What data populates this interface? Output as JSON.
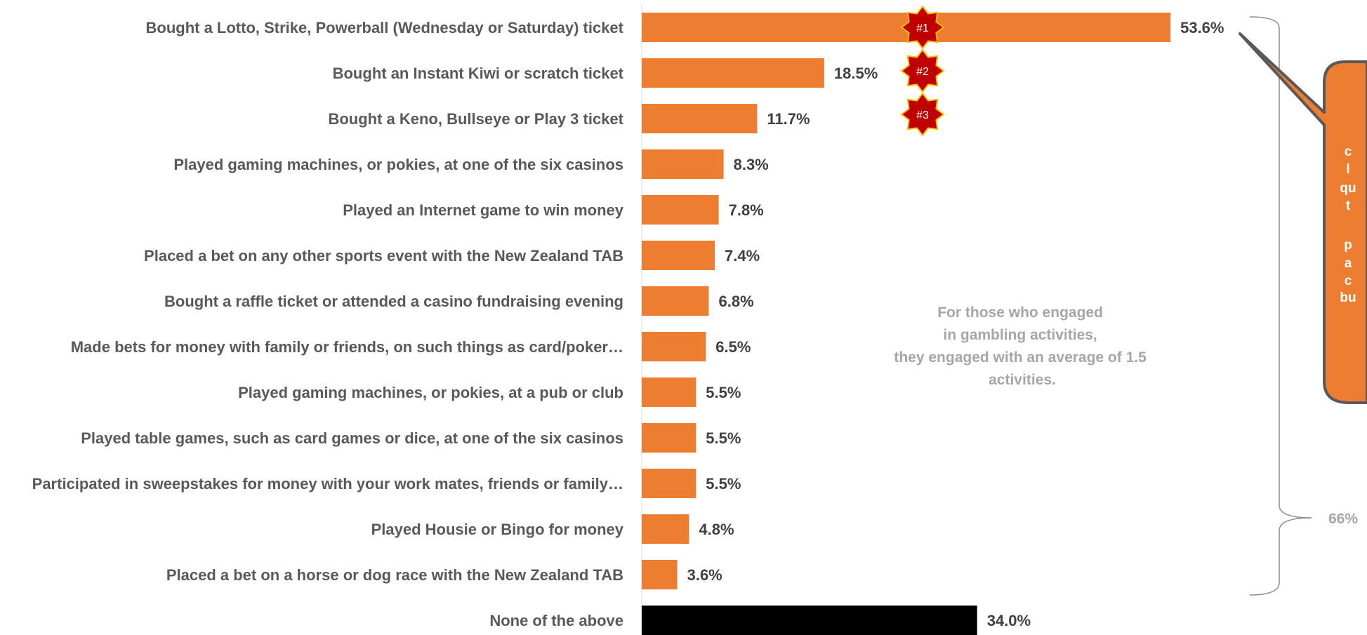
{
  "chart_data": {
    "type": "bar",
    "orientation": "horizontal",
    "categories": [
      "Bought a Lotto, Strike, Powerball (Wednesday or Saturday) ticket",
      "Bought an Instant Kiwi or scratch ticket",
      "Bought a Keno, Bullseye or Play 3 ticket",
      "Played gaming machines, or pokies, at one of the six casinos",
      "Played an Internet game to win money",
      "Placed a bet on any other sports event with the New Zealand TAB",
      "Bought a raffle ticket or attended a casino fundraising evening",
      "Made bets for money with family or friends, on such things as card/poker…",
      "Played gaming machines, or pokies, at a pub or club",
      "Played table games, such as card games or dice, at one of the six casinos",
      "Participated in sweepstakes for money with your work mates, friends or family…",
      "Played Housie or Bingo for money",
      "Placed a bet on a horse or dog race with the New Zealand TAB",
      "None of the above"
    ],
    "values": [
      53.6,
      18.5,
      11.7,
      8.3,
      7.8,
      7.4,
      6.8,
      6.5,
      5.5,
      5.5,
      5.5,
      4.8,
      3.6,
      34.0
    ],
    "value_labels": [
      "53.6%",
      "18.5%",
      "11.7%",
      "8.3%",
      "7.8%",
      "7.4%",
      "6.8%",
      "6.5%",
      "5.5%",
      "5.5%",
      "5.5%",
      "4.8%",
      "3.6%",
      "34.0%"
    ],
    "bar_colors": [
      "#ed7d31",
      "#ed7d31",
      "#ed7d31",
      "#ed7d31",
      "#ed7d31",
      "#ed7d31",
      "#ed7d31",
      "#ed7d31",
      "#ed7d31",
      "#ed7d31",
      "#ed7d31",
      "#ed7d31",
      "#ed7d31",
      "#000000"
    ],
    "xlim": [
      0,
      60
    ],
    "grid": false,
    "legend": "none",
    "rank_badges": [
      "#1",
      "#2",
      "#3"
    ],
    "annotation": "For those who engaged in gambling activities, they engaged with an average of 1.5 activities.",
    "brace_label": "66%",
    "callout_lines": [
      "c",
      "l",
      "qu",
      "t",
      "",
      "p",
      "a",
      "c",
      "bu"
    ]
  },
  "colors": {
    "accent": "#ed7d31",
    "badge": "#c00000",
    "badge_border": "#ffc000",
    "note": "#a6a6a6"
  }
}
